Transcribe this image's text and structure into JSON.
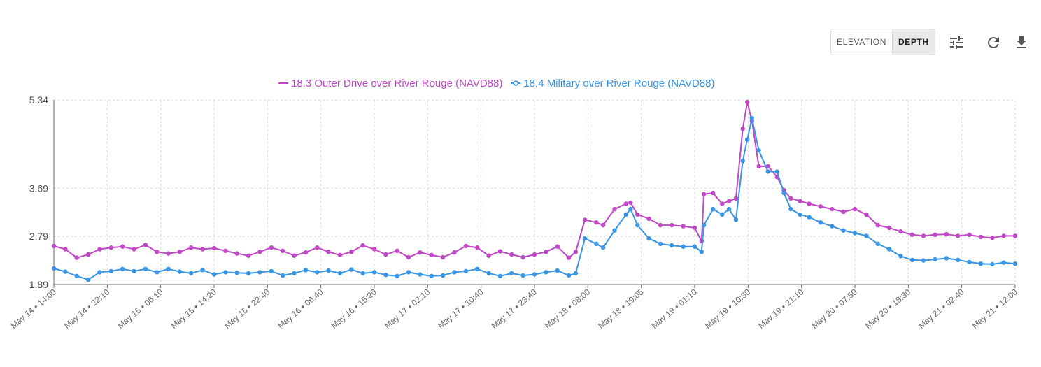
{
  "toolbar": {
    "elevation_label": "ELEVATION",
    "depth_label": "DEPTH",
    "active": "depth",
    "icons": [
      "tune-icon",
      "refresh-icon",
      "download-icon"
    ]
  },
  "colors": {
    "series1": "#c048c6",
    "series2": "#3a95e4",
    "grid": "#d8d8d8",
    "axis": "#666666"
  },
  "chart_data": {
    "type": "line",
    "title": "",
    "xlabel": "",
    "ylabel": "",
    "ylim": [
      1.89,
      5.34
    ],
    "yticks": [
      "1.89",
      "2.79",
      "3.69",
      "5.34"
    ],
    "grid": true,
    "legend_position": "top-center",
    "x_tick_labels": [
      "May 14 • 14:00",
      "May 14 • 22:10",
      "May 15 • 06:10",
      "May 15 • 14:20",
      "May 15 • 22:40",
      "May 16 • 06:40",
      "May 16 • 15:20",
      "May 17 • 02:10",
      "May 17 • 10:40",
      "May 17 • 23:40",
      "May 18 • 08:00",
      "May 18 • 19:05",
      "May 19 • 01:10",
      "May 19 • 10:30",
      "May 19 • 21:10",
      "May 20 • 07:50",
      "May 20 • 18:30",
      "May 21 • 02:40",
      "May 21 • 12:00"
    ],
    "series": [
      {
        "name": "18.3 Outer Drive over River Rouge (NAVD88)",
        "marker": "line",
        "points": [
          [
            0,
            2.61
          ],
          [
            0.5,
            2.55
          ],
          [
            1,
            2.39
          ],
          [
            1.5,
            2.45
          ],
          [
            2,
            2.55
          ],
          [
            2.5,
            2.58
          ],
          [
            3,
            2.6
          ],
          [
            3.5,
            2.55
          ],
          [
            4,
            2.63
          ],
          [
            4.5,
            2.5
          ],
          [
            5,
            2.47
          ],
          [
            5.5,
            2.5
          ],
          [
            6,
            2.58
          ],
          [
            6.5,
            2.55
          ],
          [
            7,
            2.57
          ],
          [
            7.5,
            2.52
          ],
          [
            8,
            2.47
          ],
          [
            8.5,
            2.43
          ],
          [
            9,
            2.5
          ],
          [
            9.5,
            2.58
          ],
          [
            10,
            2.52
          ],
          [
            10.5,
            2.43
          ],
          [
            11,
            2.49
          ],
          [
            11.5,
            2.58
          ],
          [
            12,
            2.5
          ],
          [
            12.5,
            2.44
          ],
          [
            13,
            2.5
          ],
          [
            13.5,
            2.62
          ],
          [
            14,
            2.55
          ],
          [
            14.5,
            2.45
          ],
          [
            15,
            2.52
          ],
          [
            15.5,
            2.4
          ],
          [
            16,
            2.49
          ],
          [
            16.5,
            2.44
          ],
          [
            17,
            2.4
          ],
          [
            17.5,
            2.49
          ],
          [
            18,
            2.61
          ],
          [
            18.5,
            2.58
          ],
          [
            19,
            2.43
          ],
          [
            19.5,
            2.51
          ],
          [
            20,
            2.45
          ],
          [
            20.5,
            2.4
          ],
          [
            21,
            2.45
          ],
          [
            21.5,
            2.5
          ],
          [
            22,
            2.6
          ],
          [
            22.5,
            2.39
          ],
          [
            22.8,
            2.5
          ],
          [
            23.2,
            3.1
          ],
          [
            23.7,
            3.05
          ],
          [
            24,
            3.0
          ],
          [
            24.5,
            3.3
          ],
          [
            25,
            3.4
          ],
          [
            25.2,
            3.42
          ],
          [
            25.5,
            3.2
          ],
          [
            26,
            3.12
          ],
          [
            26.5,
            3.0
          ],
          [
            27,
            3.0
          ],
          [
            27.5,
            2.98
          ],
          [
            28,
            2.95
          ],
          [
            28.3,
            2.7
          ],
          [
            28.4,
            3.58
          ],
          [
            28.8,
            3.6
          ],
          [
            29.2,
            3.4
          ],
          [
            29.5,
            3.45
          ],
          [
            29.8,
            3.5
          ],
          [
            30.1,
            4.8
          ],
          [
            30.3,
            5.3
          ],
          [
            30.5,
            4.95
          ],
          [
            30.8,
            4.1
          ],
          [
            31.2,
            4.1
          ],
          [
            31.6,
            3.9
          ],
          [
            31.9,
            3.65
          ],
          [
            32.2,
            3.5
          ],
          [
            32.6,
            3.45
          ],
          [
            33,
            3.4
          ],
          [
            33.5,
            3.35
          ],
          [
            34,
            3.3
          ],
          [
            34.5,
            3.25
          ],
          [
            35,
            3.3
          ],
          [
            35.5,
            3.2
          ],
          [
            36,
            3.0
          ],
          [
            36.5,
            2.95
          ],
          [
            37,
            2.88
          ],
          [
            37.5,
            2.82
          ],
          [
            38,
            2.8
          ],
          [
            38.5,
            2.82
          ],
          [
            39,
            2.83
          ],
          [
            39.5,
            2.8
          ],
          [
            40,
            2.82
          ],
          [
            40.5,
            2.78
          ],
          [
            41,
            2.76
          ],
          [
            41.5,
            2.8
          ],
          [
            42,
            2.8
          ]
        ]
      },
      {
        "name": "18.4 Military over River Rouge (NAVD88)",
        "marker": "circle",
        "points": [
          [
            0,
            2.19
          ],
          [
            0.5,
            2.13
          ],
          [
            1,
            2.05
          ],
          [
            1.5,
            1.98
          ],
          [
            2,
            2.12
          ],
          [
            2.5,
            2.14
          ],
          [
            3,
            2.18
          ],
          [
            3.5,
            2.14
          ],
          [
            4,
            2.18
          ],
          [
            4.5,
            2.12
          ],
          [
            5,
            2.18
          ],
          [
            5.5,
            2.13
          ],
          [
            6,
            2.1
          ],
          [
            6.5,
            2.16
          ],
          [
            7,
            2.08
          ],
          [
            7.5,
            2.12
          ],
          [
            8,
            2.11
          ],
          [
            8.5,
            2.1
          ],
          [
            9,
            2.12
          ],
          [
            9.5,
            2.14
          ],
          [
            10,
            2.06
          ],
          [
            10.5,
            2.1
          ],
          [
            11,
            2.16
          ],
          [
            11.5,
            2.12
          ],
          [
            12,
            2.15
          ],
          [
            12.5,
            2.1
          ],
          [
            13,
            2.17
          ],
          [
            13.5,
            2.1
          ],
          [
            14,
            2.12
          ],
          [
            14.5,
            2.07
          ],
          [
            15,
            2.05
          ],
          [
            15.5,
            2.12
          ],
          [
            16,
            2.08
          ],
          [
            16.5,
            2.05
          ],
          [
            17,
            2.06
          ],
          [
            17.5,
            2.12
          ],
          [
            18,
            2.14
          ],
          [
            18.5,
            2.18
          ],
          [
            19,
            2.1
          ],
          [
            19.5,
            2.05
          ],
          [
            20,
            2.1
          ],
          [
            20.5,
            2.06
          ],
          [
            21,
            2.08
          ],
          [
            21.5,
            2.12
          ],
          [
            22,
            2.15
          ],
          [
            22.5,
            2.06
          ],
          [
            22.8,
            2.1
          ],
          [
            23.2,
            2.75
          ],
          [
            23.7,
            2.65
          ],
          [
            24,
            2.58
          ],
          [
            24.5,
            2.9
          ],
          [
            25,
            3.2
          ],
          [
            25.2,
            3.3
          ],
          [
            25.5,
            3.0
          ],
          [
            26,
            2.75
          ],
          [
            26.5,
            2.65
          ],
          [
            27,
            2.62
          ],
          [
            27.5,
            2.6
          ],
          [
            28,
            2.6
          ],
          [
            28.3,
            2.5
          ],
          [
            28.4,
            3.0
          ],
          [
            28.8,
            3.3
          ],
          [
            29.2,
            3.2
          ],
          [
            29.5,
            3.3
          ],
          [
            29.8,
            3.1
          ],
          [
            30.1,
            4.2
          ],
          [
            30.3,
            4.6
          ],
          [
            30.5,
            5.0
          ],
          [
            30.8,
            4.4
          ],
          [
            31.2,
            4.0
          ],
          [
            31.6,
            4.0
          ],
          [
            31.9,
            3.6
          ],
          [
            32.2,
            3.3
          ],
          [
            32.6,
            3.2
          ],
          [
            33,
            3.15
          ],
          [
            33.5,
            3.05
          ],
          [
            34,
            2.98
          ],
          [
            34.5,
            2.9
          ],
          [
            35,
            2.85
          ],
          [
            35.5,
            2.8
          ],
          [
            36,
            2.65
          ],
          [
            36.5,
            2.55
          ],
          [
            37,
            2.42
          ],
          [
            37.5,
            2.35
          ],
          [
            38,
            2.34
          ],
          [
            38.5,
            2.36
          ],
          [
            39,
            2.38
          ],
          [
            39.5,
            2.35
          ],
          [
            40,
            2.31
          ],
          [
            40.5,
            2.28
          ],
          [
            41,
            2.27
          ],
          [
            41.5,
            2.3
          ],
          [
            42,
            2.28
          ]
        ]
      }
    ]
  }
}
